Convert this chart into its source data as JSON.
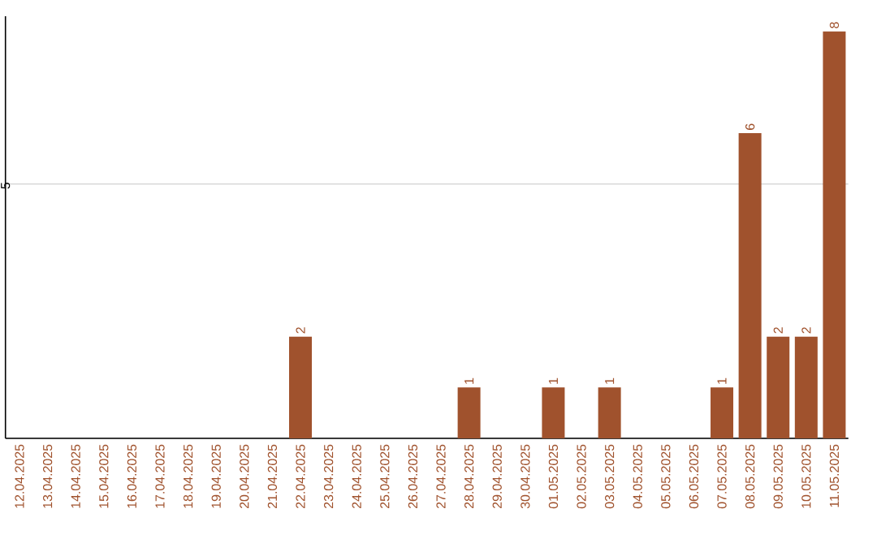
{
  "chart_data": {
    "type": "bar",
    "categories": [
      "12.04.2025",
      "13.04.2025",
      "14.04.2025",
      "15.04.2025",
      "16.04.2025",
      "17.04.2025",
      "18.04.2025",
      "19.04.2025",
      "20.04.2025",
      "21.04.2025",
      "22.04.2025",
      "23.04.2025",
      "24.04.2025",
      "25.04.2025",
      "26.04.2025",
      "27.04.2025",
      "28.04.2025",
      "29.04.2025",
      "30.04.2025",
      "01.05.2025",
      "02.05.2025",
      "03.05.2025",
      "04.05.2025",
      "05.05.2025",
      "06.05.2025",
      "07.05.2025",
      "08.05.2025",
      "09.05.2025",
      "10.05.2025",
      "11.05.2025"
    ],
    "values": [
      0,
      0,
      0,
      0,
      0,
      0,
      0,
      0,
      0,
      0,
      2,
      0,
      0,
      0,
      0,
      0,
      1,
      0,
      0,
      1,
      0,
      1,
      0,
      0,
      0,
      1,
      6,
      2,
      2,
      8
    ],
    "value_labels": [
      null,
      null,
      null,
      null,
      null,
      null,
      null,
      null,
      null,
      null,
      "2",
      null,
      null,
      null,
      null,
      null,
      "1",
      null,
      null,
      "1",
      null,
      "1",
      null,
      null,
      null,
      "1",
      "6",
      "2",
      "2",
      "8"
    ],
    "color": "#a0522d",
    "ylim": [
      0,
      8.3
    ],
    "yticks": [
      {
        "value": 0,
        "label": null
      },
      5
    ],
    "grid": "y"
  }
}
